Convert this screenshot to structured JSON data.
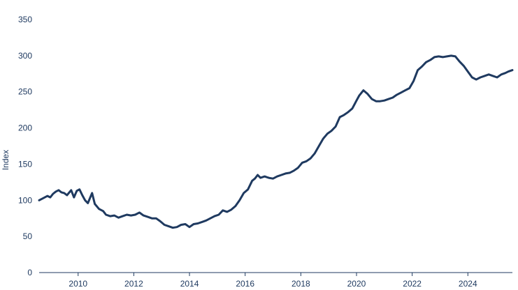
{
  "chart_data": {
    "type": "line",
    "ylabel": "Index",
    "xlabel": "",
    "ylim": [
      0,
      350
    ],
    "xlim": [
      2008.6,
      2025.6
    ],
    "y_ticks": [
      0,
      50,
      100,
      150,
      200,
      250,
      300,
      350
    ],
    "y_tick_labels": [
      "0",
      "50",
      "100",
      "150",
      "200",
      "250",
      "300",
      "350"
    ],
    "x_ticks": [
      2010,
      2012,
      2014,
      2016,
      2018,
      2020,
      2022,
      2024
    ],
    "x_tick_labels": [
      "2010",
      "2012",
      "2014",
      "2016",
      "2018",
      "2020",
      "2022",
      "2024"
    ],
    "grid": false,
    "line_color": "#1f3a60",
    "series": [
      {
        "x": [
          2008.6,
          2008.75,
          2008.9,
          2009.0,
          2009.1,
          2009.2,
          2009.3,
          2009.4,
          2009.5,
          2009.6,
          2009.75,
          2009.85,
          2009.95,
          2010.05,
          2010.15,
          2010.25,
          2010.35,
          2010.5,
          2010.6,
          2010.75,
          2010.9,
          2011.0,
          2011.15,
          2011.3,
          2011.45,
          2011.6,
          2011.75,
          2011.9,
          2012.05,
          2012.2,
          2012.35,
          2012.5,
          2012.65,
          2012.8,
          2012.95,
          2013.1,
          2013.25,
          2013.4,
          2013.55,
          2013.7,
          2013.85,
          2014.0,
          2014.15,
          2014.3,
          2014.45,
          2014.6,
          2014.75,
          2014.9,
          2015.05,
          2015.2,
          2015.35,
          2015.5,
          2015.65,
          2015.8,
          2015.95,
          2016.1,
          2016.25,
          2016.35,
          2016.45,
          2016.55,
          2016.7,
          2016.85,
          2017.0,
          2017.15,
          2017.3,
          2017.45,
          2017.6,
          2017.75,
          2017.9,
          2018.05,
          2018.2,
          2018.35,
          2018.5,
          2018.65,
          2018.8,
          2018.95,
          2019.1,
          2019.25,
          2019.4,
          2019.55,
          2019.7,
          2019.85,
          2020.0,
          2020.1,
          2020.25,
          2020.4,
          2020.55,
          2020.7,
          2020.85,
          2021.0,
          2021.15,
          2021.3,
          2021.45,
          2021.6,
          2021.75,
          2021.9,
          2022.05,
          2022.2,
          2022.35,
          2022.5,
          2022.65,
          2022.8,
          2022.95,
          2023.1,
          2023.25,
          2023.4,
          2023.55,
          2023.7,
          2023.85,
          2024.0,
          2024.15,
          2024.3,
          2024.45,
          2024.6,
          2024.75,
          2024.9,
          2025.05,
          2025.2,
          2025.35,
          2025.45,
          2025.6
        ],
        "values": [
          100,
          103,
          106,
          104,
          109,
          112,
          114,
          111,
          110,
          107,
          114,
          104,
          113,
          115,
          107,
          100,
          96,
          110,
          95,
          88,
          85,
          80,
          78,
          79,
          76,
          78,
          80,
          79,
          80,
          83,
          79,
          77,
          75,
          75,
          71,
          66,
          64,
          62,
          63,
          66,
          67,
          63,
          67,
          68,
          70,
          72,
          75,
          78,
          80,
          86,
          84,
          87,
          92,
          100,
          110,
          115,
          127,
          130,
          135,
          131,
          133,
          131,
          130,
          133,
          135,
          137,
          138,
          141,
          145,
          152,
          154,
          158,
          165,
          175,
          185,
          192,
          196,
          202,
          215,
          218,
          222,
          227,
          238,
          245,
          252,
          247,
          240,
          237,
          237,
          238,
          240,
          242,
          246,
          249,
          252,
          255,
          265,
          280,
          285,
          291,
          294,
          298,
          299,
          298,
          299,
          300,
          299,
          292,
          286,
          278,
          270,
          267,
          270,
          272,
          274,
          272,
          270,
          274,
          276,
          278,
          280
        ]
      }
    ]
  }
}
